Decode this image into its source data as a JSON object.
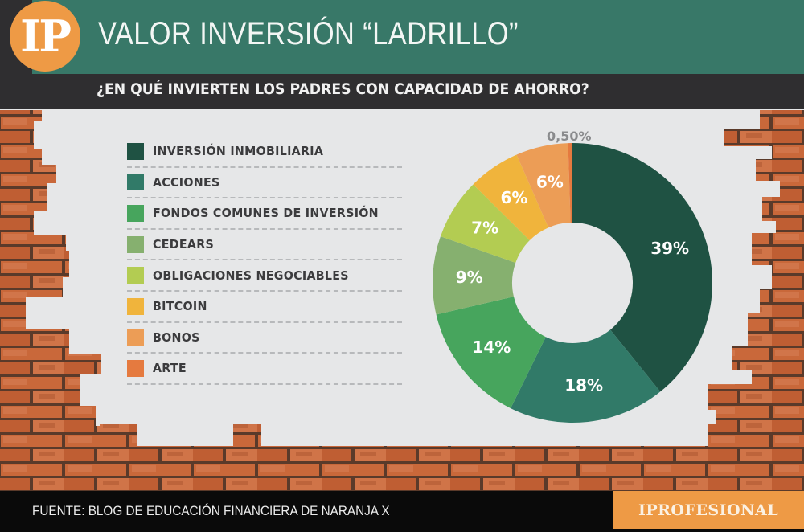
{
  "header": {
    "logo_text": "IP",
    "title": "VALOR INVERSIÓN “LADRILLO”",
    "subtitle": "¿EN QUÉ INVIERTEN LOS PADRES CON CAPACIDAD DE AHORRO?"
  },
  "legend": {
    "items": [
      {
        "label": "INVERSIÓN INMOBILIARIA",
        "color": "#1f5243"
      },
      {
        "label": "ACCIONES",
        "color": "#317a68"
      },
      {
        "label": "FONDOS COMUNES DE INVERSIÓN",
        "color": "#47a55d"
      },
      {
        "label": "CEDEARS",
        "color": "#86b06f"
      },
      {
        "label": "OBLIGACIONES NEGOCIABLES",
        "color": "#b3cc52"
      },
      {
        "label": "BITCOIN",
        "color": "#f0b43c"
      },
      {
        "label": "BONOS",
        "color": "#ec9d56"
      },
      {
        "label": "ARTE",
        "color": "#e57a3f"
      }
    ]
  },
  "chart_data": {
    "type": "pie",
    "subtype": "donut",
    "title": "¿EN QUÉ INVIERTEN LOS PADRES CON CAPACIDAD DE AHORRO?",
    "categories": [
      "INVERSIÓN INMOBILIARIA",
      "ACCIONES",
      "FONDOS COMUNES DE INVERSIÓN",
      "CEDEARS",
      "OBLIGACIONES NEGOCIABLES",
      "BITCOIN",
      "BONOS",
      "ARTE"
    ],
    "values": [
      39,
      18,
      14,
      9,
      7,
      6,
      6,
      0.5
    ],
    "labels": [
      "39%",
      "18%",
      "14%",
      "9%",
      "7%",
      "6%",
      "6%",
      "0,50%"
    ],
    "colors": [
      "#1f5243",
      "#317a68",
      "#47a55d",
      "#86b06f",
      "#b3cc52",
      "#f0b43c",
      "#ec9d56",
      "#e57a3f"
    ],
    "start_angle": "12 o'clock",
    "direction": "clockwise",
    "legend_position": "left"
  },
  "footer": {
    "source": "FUENTE: BLOG DE EDUCACIÓN FINANCIERA DE NARANJA X",
    "brand": "IPROFESIONAL"
  }
}
